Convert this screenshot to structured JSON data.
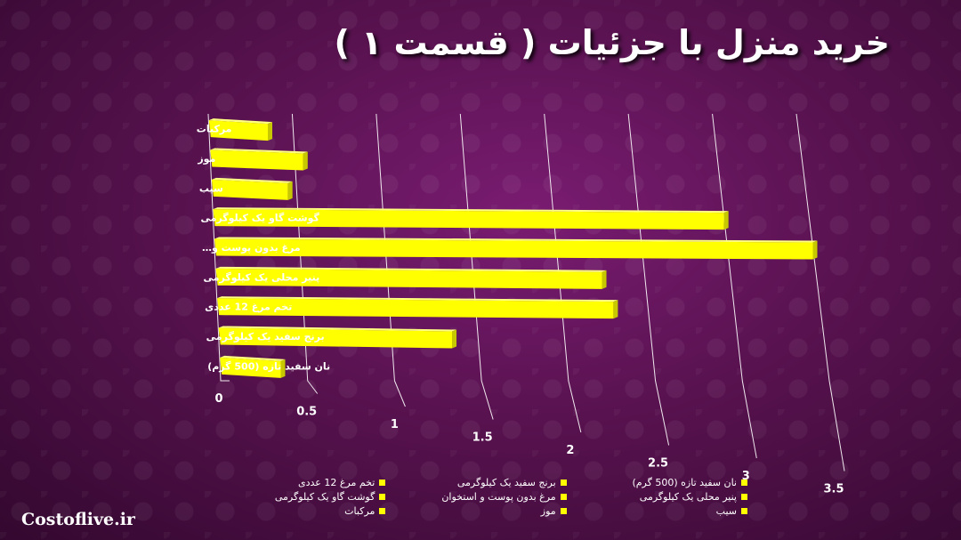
{
  "title": "خرید منزل با جزئیات ( قسمت ۱ )",
  "watermark": "Costoflive.ir",
  "colors": {
    "bar": "#ffff00",
    "bar_top": "#ffff80",
    "bar_side": "#c8c800",
    "grid": "#ffffff"
  },
  "chart_data": {
    "type": "bar",
    "orientation": "horizontal",
    "categories": [
      "مرکبات",
      "موز",
      "سیب",
      "گوشت گاو یک کیلوگرمی",
      "مرغ بدون پوست و…",
      "پنیر محلی یک کیلوگرمی",
      "تخم مرغ 12 عددی",
      "برنج سفید یک کیلوگرمی",
      "نان سفید تازه (500 گرم)"
    ],
    "values": [
      0.35,
      0.55,
      0.45,
      3.0,
      3.5,
      2.25,
      2.3,
      1.35,
      0.35
    ],
    "xlim": [
      0,
      3.5
    ],
    "ticks": [
      "0",
      "0.5",
      "1",
      "1.5",
      "2",
      "2.5",
      "3",
      "3.5"
    ],
    "grid": true,
    "legend_position": "bottom",
    "legend": [
      "نان سفید تازه (500 گرم)",
      "برنج سفید یک کیلوگرمی",
      "تخم مرغ 12 عددی",
      "پنیر محلی یک کیلوگرمی",
      "مرغ بدون پوست و استخوان",
      "گوشت گاو یک کیلوگرمی",
      "سیب",
      "موز",
      "مرکبات"
    ]
  }
}
